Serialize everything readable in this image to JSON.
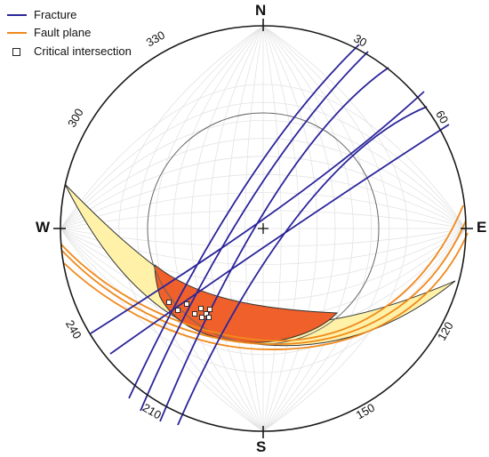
{
  "legend": {
    "items": [
      {
        "kind": "line",
        "label": "Fracture",
        "color": "#2b259a"
      },
      {
        "kind": "line",
        "label": "Fault plane",
        "color": "#f08a1c"
      },
      {
        "kind": "box",
        "label": "Critical intersection",
        "color": "#222222"
      }
    ]
  },
  "directions": {
    "north": "N",
    "south": "S",
    "east": "E",
    "west": "W"
  },
  "azimuth_labels": [
    "30",
    "60",
    "120",
    "150",
    "210",
    "240",
    "300",
    "330"
  ],
  "colors": {
    "net_grid": "#e3e3e3",
    "fracture": "#2b259a",
    "fault": "#f08a1c",
    "zone_fill": "#fff2a8",
    "critical_fill": "#f0602a",
    "outline": "#1a1a1a"
  }
}
